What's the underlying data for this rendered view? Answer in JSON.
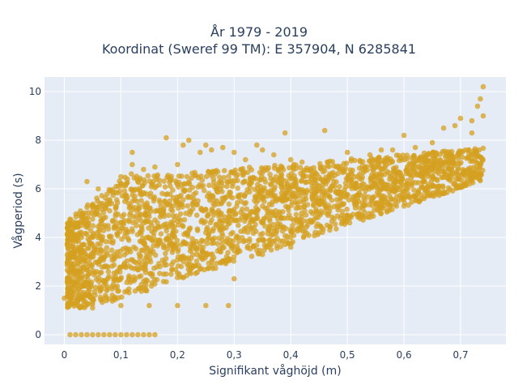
{
  "chart_data": {
    "type": "scatter",
    "title": [
      "År 1979 - 2019",
      "Koordinat (Sweref 99 TM): E 357904, N 6285841"
    ],
    "xlabel": "Signifikant våghöjd (m)",
    "ylabel": "Vågperiod (s)",
    "xlim": [
      -0.035,
      0.78
    ],
    "ylim": [
      -0.4,
      10.6
    ],
    "xticks": [
      0,
      0.1,
      0.2,
      0.3,
      0.4,
      0.5,
      0.6,
      0.7
    ],
    "xtick_labels": [
      "0",
      "0,1",
      "0,2",
      "0,3",
      "0,4",
      "0,5",
      "0,6",
      "0,7"
    ],
    "yticks": [
      0,
      2,
      4,
      6,
      8,
      10
    ],
    "ytick_labels": [
      "0",
      "2",
      "4",
      "6",
      "8",
      "10"
    ],
    "grid": true,
    "colors": {
      "point": "#D4A020",
      "plot_bg": "#E5ECF6",
      "grid": "#ffffff",
      "text": "#2a3f5f"
    },
    "series": [
      {
        "values_description": "dense cloud of hourly observations",
        "points": [
          [
            0.0,
            1.5
          ],
          [
            0.01,
            0.0
          ],
          [
            0.02,
            0.0
          ],
          [
            0.03,
            0.0
          ],
          [
            0.04,
            0.0
          ],
          [
            0.05,
            0.0
          ],
          [
            0.06,
            0.0
          ],
          [
            0.07,
            0.0
          ],
          [
            0.08,
            0.0
          ],
          [
            0.09,
            0.0
          ],
          [
            0.1,
            0.0
          ],
          [
            0.11,
            0.0
          ],
          [
            0.12,
            0.0
          ],
          [
            0.13,
            0.0
          ],
          [
            0.14,
            0.0
          ],
          [
            0.15,
            0.0
          ],
          [
            0.16,
            0.0
          ],
          [
            0.02,
            2.0
          ],
          [
            0.03,
            3.0
          ],
          [
            0.04,
            4.5
          ],
          [
            0.05,
            5.3
          ],
          [
            0.06,
            6.0
          ],
          [
            0.04,
            6.3
          ],
          [
            0.08,
            5.5
          ],
          [
            0.1,
            6.5
          ],
          [
            0.12,
            7.0
          ],
          [
            0.12,
            7.5
          ],
          [
            0.14,
            6.8
          ],
          [
            0.16,
            6.9
          ],
          [
            0.18,
            8.1
          ],
          [
            0.2,
            7.0
          ],
          [
            0.21,
            7.8
          ],
          [
            0.22,
            8.0
          ],
          [
            0.24,
            7.5
          ],
          [
            0.25,
            7.8
          ],
          [
            0.26,
            7.6
          ],
          [
            0.28,
            7.7
          ],
          [
            0.3,
            7.5
          ],
          [
            0.32,
            7.2
          ],
          [
            0.34,
            7.8
          ],
          [
            0.35,
            7.6
          ],
          [
            0.37,
            7.4
          ],
          [
            0.39,
            8.3
          ],
          [
            0.4,
            7.2
          ],
          [
            0.42,
            7.1
          ],
          [
            0.46,
            8.4
          ],
          [
            0.5,
            7.5
          ],
          [
            0.54,
            7.4
          ],
          [
            0.56,
            7.6
          ],
          [
            0.58,
            7.6
          ],
          [
            0.6,
            8.2
          ],
          [
            0.62,
            7.7
          ],
          [
            0.65,
            7.9
          ],
          [
            0.67,
            8.5
          ],
          [
            0.69,
            8.6
          ],
          [
            0.7,
            8.9
          ],
          [
            0.72,
            8.8
          ],
          [
            0.73,
            9.4
          ],
          [
            0.735,
            9.7
          ],
          [
            0.74,
            10.2
          ],
          [
            0.74,
            9.0
          ],
          [
            0.72,
            8.3
          ],
          [
            0.05,
            1.1
          ],
          [
            0.1,
            1.2
          ],
          [
            0.15,
            1.2
          ],
          [
            0.2,
            1.2
          ],
          [
            0.25,
            1.2
          ],
          [
            0.29,
            1.2
          ],
          [
            0.3,
            2.3
          ],
          [
            0.35,
            3.3
          ],
          [
            0.4,
            3.6
          ],
          [
            0.45,
            4.2
          ],
          [
            0.5,
            4.8
          ],
          [
            0.55,
            5.4
          ],
          [
            0.6,
            5.9
          ],
          [
            0.65,
            6.8
          ]
        ]
      }
    ]
  }
}
